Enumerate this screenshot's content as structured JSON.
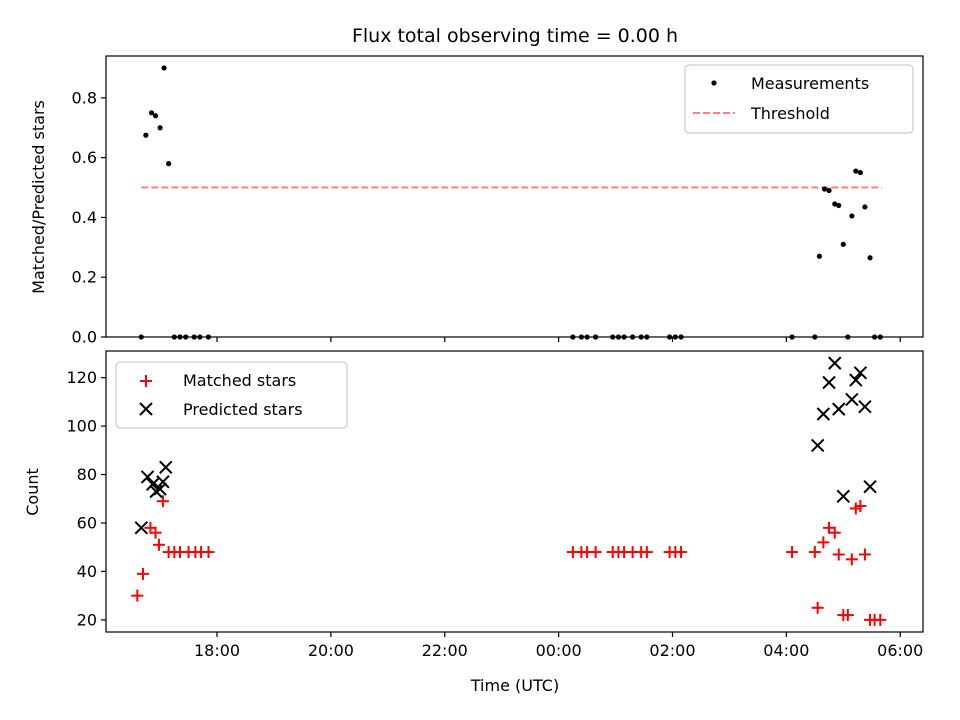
{
  "chart_data": [
    {
      "type": "scatter",
      "title": "Flux total observing time = 0.00 h",
      "xlabel": "",
      "ylabel": "Matched/Predicted stars",
      "ylim": [
        0,
        0.94
      ],
      "yticks": [
        0.0,
        0.2,
        0.4,
        0.6,
        0.8
      ],
      "ytick_labels": [
        "0.0",
        "0.2",
        "0.4",
        "0.6",
        "0.8"
      ],
      "xlim_hours": [
        16.05,
        30.4
      ],
      "legend": {
        "placement": "upper right",
        "entries": [
          "Measurements",
          "Threshold"
        ]
      },
      "grid": false,
      "threshold": {
        "name": "Threshold",
        "value": 0.5,
        "x": [
          16.67,
          29.68
        ],
        "color": "#ff7f7f",
        "style": "dashed"
      },
      "series": [
        {
          "name": "Measurements",
          "marker": "dot",
          "color": "#000000",
          "points": [
            [
              16.67,
              0.0
            ],
            [
              16.75,
              0.675
            ],
            [
              16.85,
              0.75
            ],
            [
              16.92,
              0.74
            ],
            [
              17.0,
              0.7
            ],
            [
              17.07,
              0.9
            ],
            [
              17.15,
              0.58
            ],
            [
              17.25,
              0.0
            ],
            [
              17.35,
              0.0
            ],
            [
              17.45,
              0.0
            ],
            [
              17.6,
              0.0
            ],
            [
              17.7,
              0.0
            ],
            [
              17.85,
              0.0
            ],
            [
              24.25,
              0.0
            ],
            [
              24.4,
              0.0
            ],
            [
              24.5,
              0.0
            ],
            [
              24.65,
              0.0
            ],
            [
              24.95,
              0.0
            ],
            [
              25.05,
              0.0
            ],
            [
              25.15,
              0.0
            ],
            [
              25.3,
              0.0
            ],
            [
              25.45,
              0.0
            ],
            [
              25.55,
              0.0
            ],
            [
              25.95,
              0.0
            ],
            [
              26.05,
              0.0
            ],
            [
              26.15,
              0.0
            ],
            [
              28.1,
              0.0
            ],
            [
              28.5,
              0.0
            ],
            [
              28.58,
              0.27
            ],
            [
              28.67,
              0.495
            ],
            [
              28.75,
              0.49
            ],
            [
              28.85,
              0.445
            ],
            [
              28.92,
              0.44
            ],
            [
              29.0,
              0.31
            ],
            [
              29.08,
              0.0
            ],
            [
              29.15,
              0.405
            ],
            [
              29.22,
              0.555
            ],
            [
              29.3,
              0.55
            ],
            [
              29.38,
              0.435
            ],
            [
              29.47,
              0.265
            ],
            [
              29.55,
              0.0
            ],
            [
              29.65,
              0.0
            ]
          ]
        }
      ]
    },
    {
      "type": "scatter",
      "title": "",
      "xlabel": "Time (UTC)",
      "ylabel": "Count",
      "ylim": [
        15,
        131
      ],
      "yticks": [
        20,
        40,
        60,
        80,
        100,
        120
      ],
      "ytick_labels": [
        "20",
        "40",
        "60",
        "80",
        "100",
        "120"
      ],
      "xlim_hours": [
        16.05,
        30.4
      ],
      "xticks_hours": [
        18,
        20,
        22,
        24,
        26,
        28,
        30
      ],
      "xtick_labels": [
        "18:00",
        "20:00",
        "22:00",
        "00:00",
        "02:00",
        "04:00",
        "06:00"
      ],
      "legend": {
        "placement": "upper left",
        "entries": [
          "Matched stars",
          "Predicted stars"
        ]
      },
      "grid": false,
      "series": [
        {
          "name": "Matched stars",
          "marker": "plus",
          "color": "#ff0000",
          "points": [
            [
              16.6,
              30
            ],
            [
              16.7,
              39
            ],
            [
              16.83,
              58
            ],
            [
              16.92,
              56
            ],
            [
              16.98,
              51
            ],
            [
              17.05,
              69
            ],
            [
              17.15,
              48
            ],
            [
              17.25,
              48
            ],
            [
              17.35,
              48
            ],
            [
              17.5,
              48
            ],
            [
              17.62,
              48
            ],
            [
              17.72,
              48
            ],
            [
              17.85,
              48
            ],
            [
              24.25,
              48
            ],
            [
              24.4,
              48
            ],
            [
              24.5,
              48
            ],
            [
              24.65,
              48
            ],
            [
              24.95,
              48
            ],
            [
              25.05,
              48
            ],
            [
              25.15,
              48
            ],
            [
              25.3,
              48
            ],
            [
              25.45,
              48
            ],
            [
              25.55,
              48
            ],
            [
              25.95,
              48
            ],
            [
              26.05,
              48
            ],
            [
              26.15,
              48
            ],
            [
              28.1,
              48
            ],
            [
              28.5,
              48
            ],
            [
              28.55,
              25
            ],
            [
              28.65,
              52
            ],
            [
              28.75,
              58
            ],
            [
              28.85,
              56
            ],
            [
              28.92,
              47
            ],
            [
              29.0,
              22
            ],
            [
              29.08,
              22
            ],
            [
              29.15,
              45
            ],
            [
              29.22,
              66
            ],
            [
              29.3,
              67
            ],
            [
              29.38,
              47
            ],
            [
              29.47,
              20
            ],
            [
              29.55,
              20
            ],
            [
              29.65,
              20
            ]
          ]
        },
        {
          "name": "Predicted stars",
          "marker": "x",
          "color": "#000000",
          "points": [
            [
              16.67,
              58
            ],
            [
              16.78,
              79
            ],
            [
              16.87,
              76
            ],
            [
              16.93,
              73
            ],
            [
              17.0,
              74
            ],
            [
              17.05,
              77
            ],
            [
              17.1,
              83
            ],
            [
              28.55,
              92
            ],
            [
              28.65,
              105
            ],
            [
              28.75,
              118
            ],
            [
              28.85,
              126
            ],
            [
              28.92,
              107
            ],
            [
              29.0,
              71
            ],
            [
              29.15,
              111
            ],
            [
              29.22,
              119
            ],
            [
              29.3,
              122
            ],
            [
              29.38,
              108
            ],
            [
              29.47,
              75
            ]
          ]
        }
      ]
    }
  ]
}
